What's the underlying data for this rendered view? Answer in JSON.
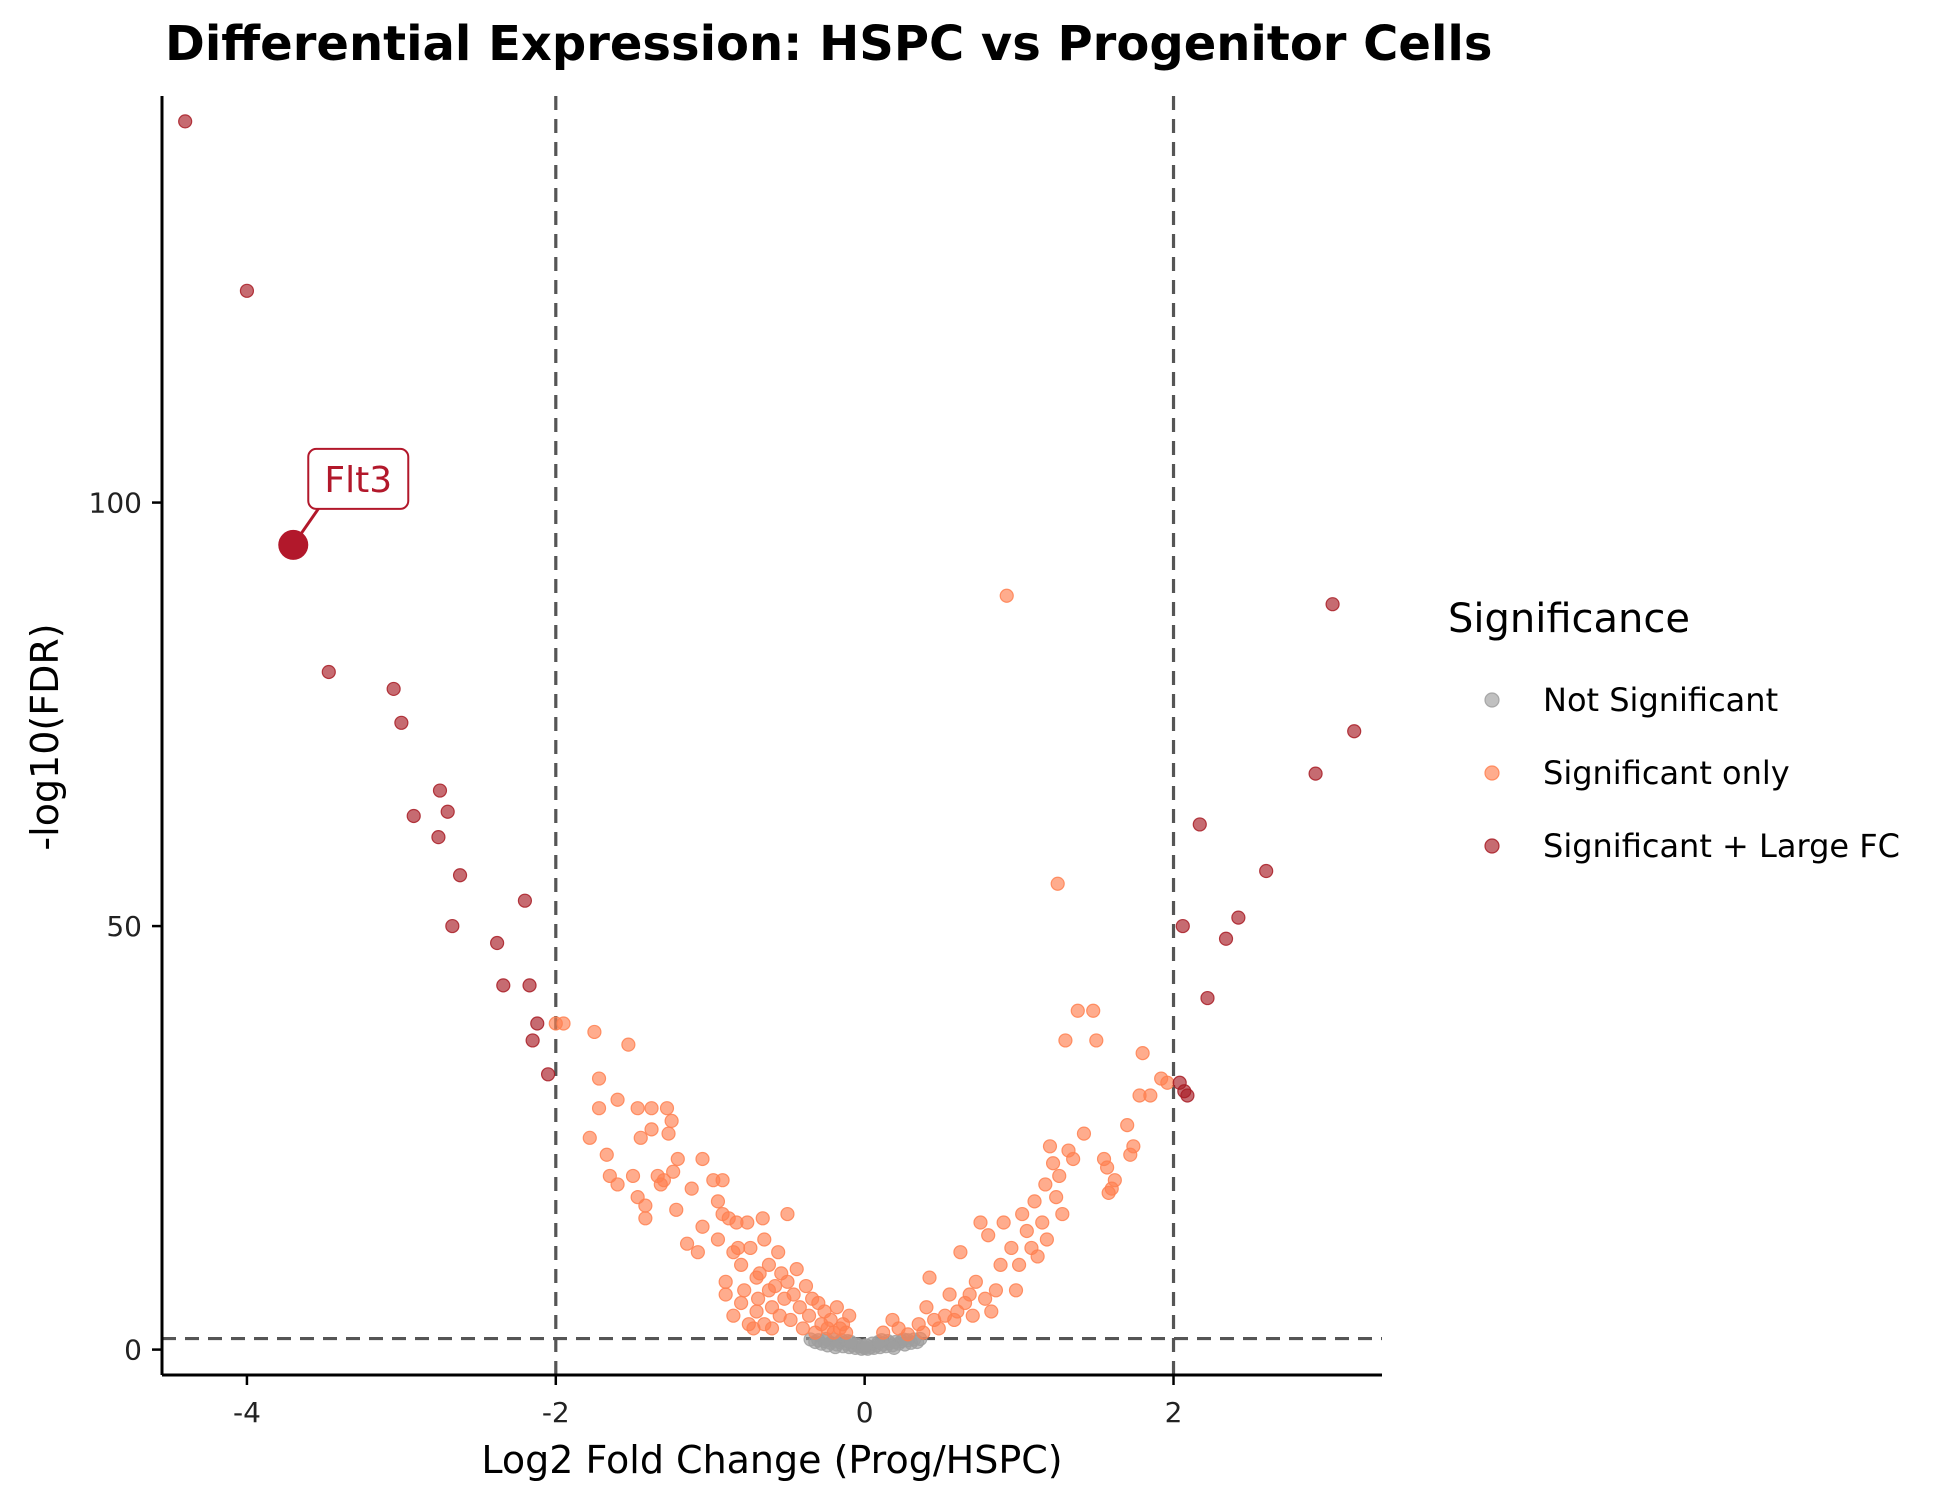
{
  "chart_data": {
    "type": "scatter",
    "title": "Differential Expression: HSPC vs Progenitor Cells",
    "xlabel": "Log2 Fold Change (Prog/HSPC)",
    "ylabel": "-log10(FDR)",
    "xlim": [
      -4.55,
      3.35
    ],
    "ylim": [
      -3,
      148
    ],
    "xticks": [
      -4,
      -2,
      0,
      2
    ],
    "yticks": [
      0,
      50,
      100
    ],
    "thresholds": {
      "fc": [
        -2,
        2
      ],
      "fdr": 1.3
    },
    "grid": false,
    "legend": {
      "title": "Significance",
      "position": "right",
      "entries": [
        {
          "label": "Not Significant",
          "color": "#9e9e9e"
        },
        {
          "label": "Significant only",
          "color": "#ff8050"
        },
        {
          "label": "Significant + Large FC",
          "color": "#a81c25"
        }
      ]
    },
    "highlight": {
      "label": "Flt3",
      "x": -3.7,
      "y": 95,
      "color": "#b2182b"
    },
    "series": [
      {
        "name": "Significant + Large FC",
        "color": "#a81c25",
        "points": [
          [
            -4.4,
            145
          ],
          [
            -4.0,
            125
          ],
          [
            -3.47,
            80
          ],
          [
            -3.05,
            78
          ],
          [
            -3.0,
            74
          ],
          [
            -2.92,
            63
          ],
          [
            -2.75,
            66
          ],
          [
            -2.7,
            63.5
          ],
          [
            -2.76,
            60.5
          ],
          [
            -2.67,
            50
          ],
          [
            -2.62,
            56
          ],
          [
            -2.38,
            48
          ],
          [
            -2.34,
            43
          ],
          [
            -2.2,
            53
          ],
          [
            -2.17,
            43
          ],
          [
            -2.12,
            38.5
          ],
          [
            -2.15,
            36.5
          ],
          [
            -2.05,
            32.5
          ],
          [
            2.04,
            31.5
          ],
          [
            2.07,
            30.5
          ],
          [
            2.09,
            30
          ],
          [
            2.06,
            50
          ],
          [
            2.17,
            62
          ],
          [
            2.22,
            41.5
          ],
          [
            2.34,
            48.5
          ],
          [
            2.42,
            51
          ],
          [
            2.6,
            56.5
          ],
          [
            2.92,
            68
          ],
          [
            3.03,
            88
          ],
          [
            3.17,
            73
          ]
        ]
      },
      {
        "name": "Significant only",
        "color": "#ff8050",
        "points": [
          [
            -2.0,
            38.5
          ],
          [
            -1.95,
            38.5
          ],
          [
            -1.75,
            37.5
          ],
          [
            -1.72,
            32
          ],
          [
            -1.72,
            28.5
          ],
          [
            -1.78,
            25
          ],
          [
            -1.67,
            23
          ],
          [
            -1.65,
            20.5
          ],
          [
            -1.6,
            29.5
          ],
          [
            -1.6,
            19.5
          ],
          [
            -1.53,
            36
          ],
          [
            -1.47,
            28.5
          ],
          [
            -1.5,
            20.5
          ],
          [
            -1.47,
            18
          ],
          [
            -1.45,
            25
          ],
          [
            -1.42,
            15.5
          ],
          [
            -1.42,
            17
          ],
          [
            -1.38,
            28.5
          ],
          [
            -1.38,
            26
          ],
          [
            -1.34,
            20.5
          ],
          [
            -1.32,
            19.5
          ],
          [
            -1.3,
            20
          ],
          [
            -1.28,
            28.5
          ],
          [
            -1.27,
            25.5
          ],
          [
            -1.25,
            27
          ],
          [
            -1.24,
            21
          ],
          [
            -1.22,
            16.5
          ],
          [
            -1.21,
            22.5
          ],
          [
            -1.15,
            12.5
          ],
          [
            -1.12,
            19
          ],
          [
            -1.05,
            22.5
          ],
          [
            -1.08,
            11.5
          ],
          [
            -1.05,
            14.5
          ],
          [
            -0.98,
            20
          ],
          [
            -0.95,
            17.5
          ],
          [
            -0.95,
            13
          ],
          [
            -0.92,
            16
          ],
          [
            -0.92,
            20
          ],
          [
            -0.9,
            8
          ],
          [
            -0.88,
            15.5
          ],
          [
            -0.85,
            11.5
          ],
          [
            -0.83,
            15
          ],
          [
            -0.82,
            12
          ],
          [
            -0.8,
            10
          ],
          [
            -0.78,
            7
          ],
          [
            -0.76,
            15
          ],
          [
            -0.74,
            12
          ],
          [
            -0.7,
            8.5
          ],
          [
            -0.69,
            6
          ],
          [
            -0.68,
            9
          ],
          [
            -0.66,
            15.5
          ],
          [
            -0.65,
            13
          ],
          [
            -0.62,
            10
          ],
          [
            -0.6,
            5
          ],
          [
            -0.58,
            7.5
          ],
          [
            -0.56,
            11.5
          ],
          [
            -0.54,
            9
          ],
          [
            -0.52,
            6
          ],
          [
            -0.5,
            8
          ],
          [
            -0.5,
            16
          ],
          [
            -0.48,
            3.5
          ],
          [
            -0.46,
            6.5
          ],
          [
            -0.44,
            9.5
          ],
          [
            -0.42,
            5
          ],
          [
            -0.4,
            2.5
          ],
          [
            -0.38,
            7.5
          ],
          [
            -0.36,
            4
          ],
          [
            -0.34,
            6
          ],
          [
            -0.32,
            2
          ],
          [
            -0.3,
            5.5
          ],
          [
            -0.28,
            3
          ],
          [
            -0.26,
            4.5
          ],
          [
            -0.24,
            2.5
          ],
          [
            -0.22,
            3.5
          ],
          [
            -0.2,
            2
          ],
          [
            -0.18,
            5
          ],
          [
            -0.16,
            2.5
          ],
          [
            -0.14,
            3
          ],
          [
            -0.12,
            2
          ],
          [
            -0.1,
            4
          ],
          [
            -0.9,
            6.5
          ],
          [
            -0.85,
            4
          ],
          [
            -0.8,
            5.5
          ],
          [
            -0.75,
            3
          ],
          [
            -0.7,
            4.5
          ],
          [
            -0.65,
            3
          ],
          [
            -0.6,
            2.5
          ],
          [
            -0.55,
            4
          ],
          [
            -0.72,
            2.5
          ],
          [
            -0.62,
            7
          ],
          [
            0.12,
            2
          ],
          [
            0.18,
            3.5
          ],
          [
            0.22,
            2.5
          ],
          [
            0.28,
            1.8
          ],
          [
            0.35,
            3
          ],
          [
            0.38,
            2
          ],
          [
            0.4,
            5
          ],
          [
            0.42,
            8.5
          ],
          [
            0.45,
            3.5
          ],
          [
            0.48,
            2.5
          ],
          [
            0.52,
            4
          ],
          [
            0.55,
            6.5
          ],
          [
            0.58,
            3.5
          ],
          [
            0.6,
            4.5
          ],
          [
            0.62,
            11.5
          ],
          [
            0.65,
            5.5
          ],
          [
            0.68,
            6.5
          ],
          [
            0.7,
            4
          ],
          [
            0.72,
            8
          ],
          [
            0.75,
            15
          ],
          [
            0.78,
            6
          ],
          [
            0.8,
            13.5
          ],
          [
            0.82,
            4.5
          ],
          [
            0.85,
            7
          ],
          [
            0.88,
            10
          ],
          [
            0.9,
            15
          ],
          [
            0.92,
            89
          ],
          [
            0.95,
            12
          ],
          [
            0.98,
            7
          ],
          [
            1.0,
            10
          ],
          [
            1.02,
            16
          ],
          [
            1.05,
            14
          ],
          [
            1.08,
            12
          ],
          [
            1.1,
            17.5
          ],
          [
            1.12,
            11
          ],
          [
            1.15,
            15
          ],
          [
            1.17,
            19.5
          ],
          [
            1.18,
            13
          ],
          [
            1.2,
            24
          ],
          [
            1.22,
            22
          ],
          [
            1.24,
            18
          ],
          [
            1.26,
            20.5
          ],
          [
            1.28,
            16
          ],
          [
            1.25,
            55
          ],
          [
            1.3,
            36.5
          ],
          [
            1.32,
            23.5
          ],
          [
            1.35,
            22.5
          ],
          [
            1.38,
            40
          ],
          [
            1.42,
            25.5
          ],
          [
            1.48,
            40
          ],
          [
            1.5,
            36.5
          ],
          [
            1.55,
            22.5
          ],
          [
            1.57,
            21.5
          ],
          [
            1.6,
            19
          ],
          [
            1.62,
            20
          ],
          [
            1.58,
            18.5
          ],
          [
            1.7,
            26.5
          ],
          [
            1.72,
            23
          ],
          [
            1.74,
            24
          ],
          [
            1.78,
            30
          ],
          [
            1.8,
            35
          ],
          [
            1.85,
            30
          ],
          [
            1.92,
            32
          ],
          [
            1.96,
            31.5
          ]
        ]
      },
      {
        "name": "Not Significant",
        "color": "#9e9e9e",
        "points": [
          [
            -0.35,
            1.2
          ],
          [
            -0.32,
            0.9
          ],
          [
            -0.3,
            1.1
          ],
          [
            -0.28,
            0.7
          ],
          [
            -0.26,
            1.0
          ],
          [
            -0.24,
            0.5
          ],
          [
            -0.22,
            0.8
          ],
          [
            -0.2,
            1.2
          ],
          [
            -0.18,
            0.6
          ],
          [
            -0.16,
            0.9
          ],
          [
            -0.14,
            0.4
          ],
          [
            -0.12,
            0.7
          ],
          [
            -0.1,
            0.3
          ],
          [
            -0.08,
            0.5
          ],
          [
            -0.06,
            0.2
          ],
          [
            -0.04,
            0.4
          ],
          [
            -0.02,
            0.1
          ],
          [
            0.0,
            0.2
          ],
          [
            0.02,
            0.1
          ],
          [
            0.04,
            0.3
          ],
          [
            0.06,
            0.2
          ],
          [
            0.08,
            0.5
          ],
          [
            0.1,
            0.3
          ],
          [
            0.12,
            0.6
          ],
          [
            0.14,
            0.4
          ],
          [
            0.16,
            0.8
          ],
          [
            0.18,
            0.5
          ],
          [
            0.2,
            0.9
          ],
          [
            0.22,
            0.7
          ],
          [
            0.24,
            1.0
          ],
          [
            0.26,
            0.6
          ],
          [
            0.28,
            1.1
          ],
          [
            0.3,
            0.8
          ],
          [
            0.32,
            1.2
          ],
          [
            0.34,
            0.9
          ],
          [
            -0.25,
            1.25
          ],
          [
            -0.15,
            1.1
          ],
          [
            -0.05,
            0.6
          ],
          [
            0.05,
            0.7
          ],
          [
            0.15,
            1.0
          ],
          [
            0.25,
            1.2
          ],
          [
            -0.11,
            1.0
          ],
          [
            0.11,
            1.1
          ],
          [
            -0.19,
            0.3
          ],
          [
            0.19,
            0.2
          ],
          [
            -0.09,
            0.9
          ],
          [
            0.09,
            0.9
          ],
          [
            -0.01,
            0.4
          ],
          [
            0.01,
            0.5
          ],
          [
            0.36,
            1.25
          ]
        ]
      }
    ]
  }
}
